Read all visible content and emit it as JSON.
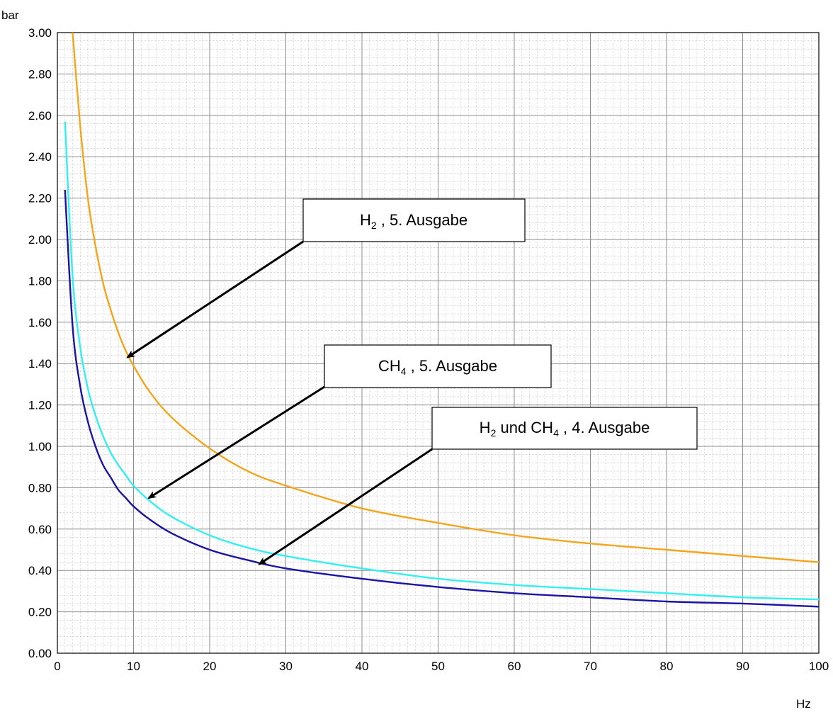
{
  "chart_data": {
    "type": "line",
    "ylabel": "bar",
    "xlabel": "Hz",
    "xlim": [
      0,
      100
    ],
    "ylim": [
      0,
      3.0
    ],
    "grid": true,
    "x_ticks": [
      0,
      10,
      20,
      30,
      40,
      50,
      60,
      70,
      80,
      90,
      100
    ],
    "y_ticks": [
      0,
      0.2,
      0.4,
      0.6,
      0.8,
      1.0,
      1.2,
      1.4,
      1.6,
      1.8,
      2.0,
      2.2,
      2.4,
      2.6,
      2.8,
      3.0
    ],
    "x_tick_labels": [
      "0",
      "10",
      "20",
      "30",
      "40",
      "50",
      "60",
      "70",
      "80",
      "90",
      "100"
    ],
    "y_tick_labels": [
      "0.00",
      "0.20",
      "0.40",
      "0.60",
      "0.80",
      "1.00",
      "1.20",
      "1.40",
      "1.60",
      "1.80",
      "2.00",
      "2.20",
      "2.40",
      "2.60",
      "2.80",
      "3.00"
    ],
    "series": [
      {
        "color": "#f5a51c",
        "x": [
          2,
          3,
          4,
          5,
          6,
          7,
          8,
          9,
          10,
          12,
          15,
          20,
          25,
          30,
          40,
          50,
          60,
          70,
          80,
          90,
          100
        ],
        "y": [
          3.0,
          2.55,
          2.2,
          1.97,
          1.79,
          1.66,
          1.55,
          1.46,
          1.39,
          1.27,
          1.14,
          0.99,
          0.88,
          0.81,
          0.7,
          0.63,
          0.57,
          0.53,
          0.5,
          0.47,
          0.44
        ]
      },
      {
        "color": "#33f0f0",
        "x": [
          1,
          2,
          3,
          4,
          5,
          6,
          7,
          8,
          9,
          10,
          12,
          15,
          20,
          25,
          30,
          40,
          50,
          60,
          70,
          80,
          90,
          100
        ],
        "y": [
          2.57,
          1.82,
          1.48,
          1.28,
          1.15,
          1.05,
          0.97,
          0.91,
          0.86,
          0.81,
          0.74,
          0.66,
          0.57,
          0.51,
          0.47,
          0.41,
          0.36,
          0.33,
          0.31,
          0.29,
          0.27,
          0.26
        ]
      },
      {
        "color": "#1a13a3",
        "x": [
          1,
          2,
          3,
          4,
          5,
          6,
          7,
          8,
          9,
          10,
          12,
          15,
          20,
          25,
          30,
          40,
          50,
          60,
          70,
          80,
          90,
          100
        ],
        "y": [
          2.24,
          1.58,
          1.29,
          1.12,
          1.0,
          0.91,
          0.85,
          0.79,
          0.75,
          0.71,
          0.65,
          0.58,
          0.5,
          0.45,
          0.41,
          0.36,
          0.32,
          0.29,
          0.27,
          0.25,
          0.24,
          0.225
        ]
      }
    ],
    "annotations": [
      {
        "base": "H",
        "sub": "2",
        "rest": " , 5. Ausgabe",
        "arrow_to": [
          9.2,
          1.43
        ]
      },
      {
        "base": "CH",
        "sub": "4",
        "rest": " , 5. Ausgabe",
        "arrow_to": [
          12.0,
          0.75
        ]
      },
      {
        "base": "H",
        "sub": "2",
        "mid": " und CH",
        "sub2": "4",
        "rest": " , 4. Ausgabe",
        "arrow_to": [
          26.5,
          0.43
        ]
      }
    ]
  }
}
